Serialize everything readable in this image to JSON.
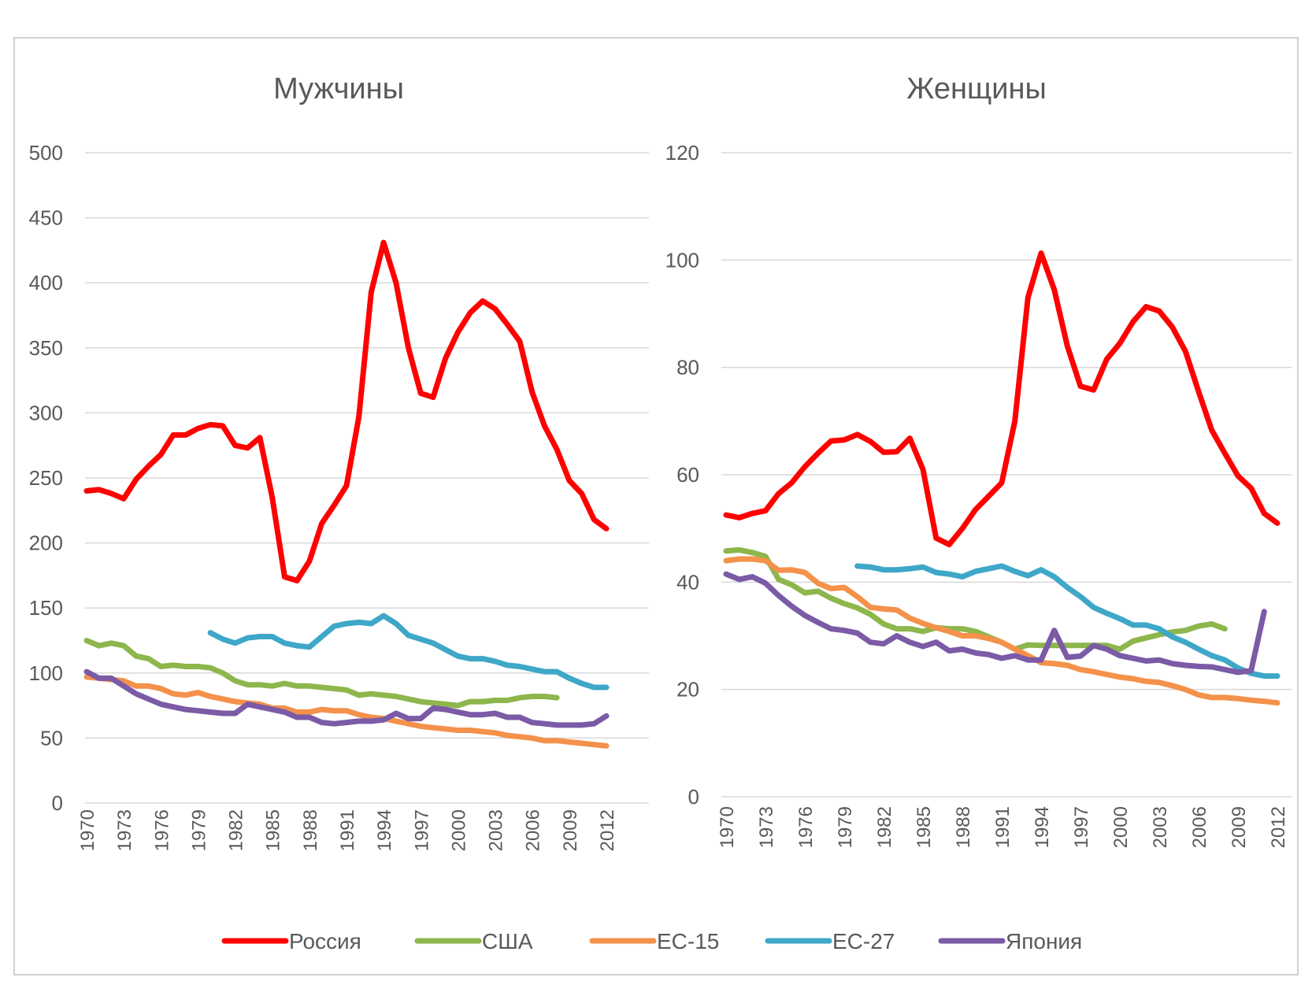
{
  "colors": {
    "russia": "#ff0000",
    "usa": "#8db64c",
    "eu15": "#f4914a",
    "eu27": "#3fa7c8",
    "japan": "#7b5aa6"
  },
  "legend": [
    {
      "key": "russia",
      "label": "Россия"
    },
    {
      "key": "usa",
      "label": "США"
    },
    {
      "key": "eu15",
      "label": "ЕС-15"
    },
    {
      "key": "eu27",
      "label": "ЕС-27"
    },
    {
      "key": "japan",
      "label": "Япония"
    }
  ],
  "chart_data": [
    {
      "type": "line",
      "title": "Мужчины",
      "xlabel": "",
      "ylabel": "",
      "ylim": [
        0,
        500
      ],
      "yticks": [
        0,
        50,
        100,
        150,
        200,
        250,
        300,
        350,
        400,
        450,
        500
      ],
      "xticks": [
        1970,
        1973,
        1976,
        1979,
        1982,
        1985,
        1988,
        1991,
        1994,
        1997,
        2000,
        2003,
        2006,
        2009,
        2012
      ],
      "x_start": 1970,
      "x_end": 2012,
      "series": [
        {
          "key": "russia",
          "name": "Россия",
          "start": 1970,
          "values": [
            240,
            241,
            238,
            234,
            249,
            259,
            268,
            283,
            283,
            288,
            291,
            290,
            275,
            273,
            281,
            235,
            174,
            171,
            186,
            215,
            229,
            244,
            297,
            393,
            431,
            400,
            350,
            315,
            312,
            342,
            362,
            377,
            386,
            380,
            368,
            355,
            316,
            290,
            272,
            248,
            238,
            218,
            211
          ]
        },
        {
          "key": "usa",
          "name": "США",
          "start": 1970,
          "values": [
            125,
            121,
            123,
            121,
            113,
            111,
            105,
            106,
            105,
            105,
            104,
            100,
            94,
            91,
            91,
            90,
            92,
            90,
            90,
            89,
            88,
            87,
            83,
            84,
            83,
            82,
            80,
            78,
            77,
            76,
            75,
            78,
            78,
            79,
            79,
            81,
            82,
            82,
            81
          ]
        },
        {
          "key": "eu15",
          "name": "ЕС-15",
          "start": 1970,
          "values": [
            97,
            96,
            95,
            94,
            90,
            90,
            88,
            84,
            83,
            85,
            82,
            80,
            78,
            77,
            76,
            73,
            73,
            70,
            70,
            72,
            71,
            71,
            68,
            66,
            65,
            63,
            61,
            59,
            58,
            57,
            56,
            56,
            55,
            54,
            52,
            51,
            50,
            48,
            48,
            47,
            46,
            45,
            44
          ]
        },
        {
          "key": "eu27",
          "name": "ЕС-27",
          "start": 1980,
          "values": [
            131,
            126,
            123,
            127,
            128,
            128,
            123,
            121,
            120,
            128,
            136,
            138,
            139,
            138,
            144,
            138,
            129,
            126,
            123,
            118,
            113,
            111,
            111,
            109,
            106,
            105,
            103,
            101,
            101,
            96,
            92,
            89,
            89
          ]
        },
        {
          "key": "japan",
          "name": "Япония",
          "start": 1970,
          "values": [
            101,
            96,
            96,
            90,
            84,
            80,
            76,
            74,
            72,
            71,
            70,
            69,
            69,
            76,
            74,
            72,
            70,
            66,
            66,
            62,
            61,
            62,
            63,
            63,
            64,
            69,
            65,
            65,
            73,
            72,
            70,
            68,
            68,
            69,
            66,
            66,
            62,
            61,
            60,
            60,
            60,
            61,
            67
          ]
        }
      ]
    },
    {
      "type": "line",
      "title": "Женщины",
      "xlabel": "",
      "ylabel": "",
      "ylim": [
        0,
        120
      ],
      "yticks": [
        0,
        20,
        40,
        60,
        80,
        100,
        120
      ],
      "xticks": [
        1970,
        1973,
        1976,
        1979,
        1982,
        1985,
        1988,
        1991,
        1994,
        1997,
        2000,
        2003,
        2006,
        2009,
        2012
      ],
      "x_start": 1970,
      "x_end": 2012,
      "series": [
        {
          "key": "russia",
          "name": "Россия",
          "start": 1970,
          "values": [
            52.5,
            52,
            52.8,
            53.3,
            56.5,
            58.5,
            61.5,
            64,
            66.3,
            66.5,
            67.5,
            66.2,
            64.2,
            64.3,
            66.8,
            61,
            48.2,
            47,
            50,
            53.5,
            56,
            58.5,
            70,
            93,
            101.3,
            94.5,
            84,
            76.5,
            75.8,
            81.5,
            84.5,
            88.5,
            91.3,
            90.5,
            87.5,
            83,
            75.5,
            68.3,
            64,
            59.8,
            57.5,
            52.8,
            51
          ]
        },
        {
          "key": "usa",
          "name": "США",
          "start": 1970,
          "values": [
            45.8,
            46,
            45.5,
            44.8,
            40.5,
            39.5,
            38,
            38.3,
            37,
            36,
            35.2,
            34,
            32.2,
            31.3,
            31.3,
            30.8,
            31.5,
            31.3,
            31.3,
            30.8,
            29.8,
            28.8,
            27.5,
            28.3,
            28.2,
            28.2,
            28.2,
            28.2,
            28.2,
            28.2,
            27.5,
            29,
            29.6,
            30.2,
            30.7,
            31,
            31.8,
            32.2,
            31.3
          ]
        },
        {
          "key": "eu15",
          "name": "ЕС-15",
          "start": 1970,
          "values": [
            44,
            44.3,
            44.3,
            44,
            42.2,
            42.3,
            41.8,
            39.8,
            38.8,
            39,
            37.3,
            35.3,
            35,
            34.8,
            33.3,
            32.3,
            31.5,
            30.8,
            30,
            30,
            29.5,
            28.8,
            27.5,
            26.3,
            25,
            24.8,
            24.5,
            23.7,
            23.3,
            22.8,
            22.3,
            22,
            21.5,
            21.3,
            20.7,
            20,
            19,
            18.5,
            18.5,
            18.3,
            18,
            17.8,
            17.5
          ]
        },
        {
          "key": "eu27",
          "name": "ЕС-27",
          "start": 1980,
          "values": [
            43,
            42.8,
            42.3,
            42.3,
            42.5,
            42.8,
            41.8,
            41.5,
            41,
            42,
            42.5,
            43,
            42,
            41.2,
            42.3,
            41,
            39,
            37.3,
            35.3,
            34.2,
            33.2,
            32,
            32,
            31.3,
            29.8,
            28.8,
            27.5,
            26.3,
            25.5,
            24,
            23,
            22.5,
            22.5
          ]
        },
        {
          "key": "japan",
          "name": "Япония",
          "start": 1970,
          "values": [
            41.5,
            40.5,
            41,
            39.8,
            37.5,
            35.5,
            33.8,
            32.5,
            31.3,
            31,
            30.5,
            28.8,
            28.5,
            30,
            28.8,
            28,
            28.8,
            27.2,
            27.5,
            26.8,
            26.5,
            25.8,
            26.3,
            25.5,
            25.5,
            31,
            26,
            26.2,
            28.2,
            27.5,
            26.3,
            25.8,
            25.3,
            25.5,
            24.8,
            24.5,
            24.3,
            24.2,
            23.7,
            23.2,
            23.5,
            34.5
          ]
        }
      ]
    }
  ]
}
